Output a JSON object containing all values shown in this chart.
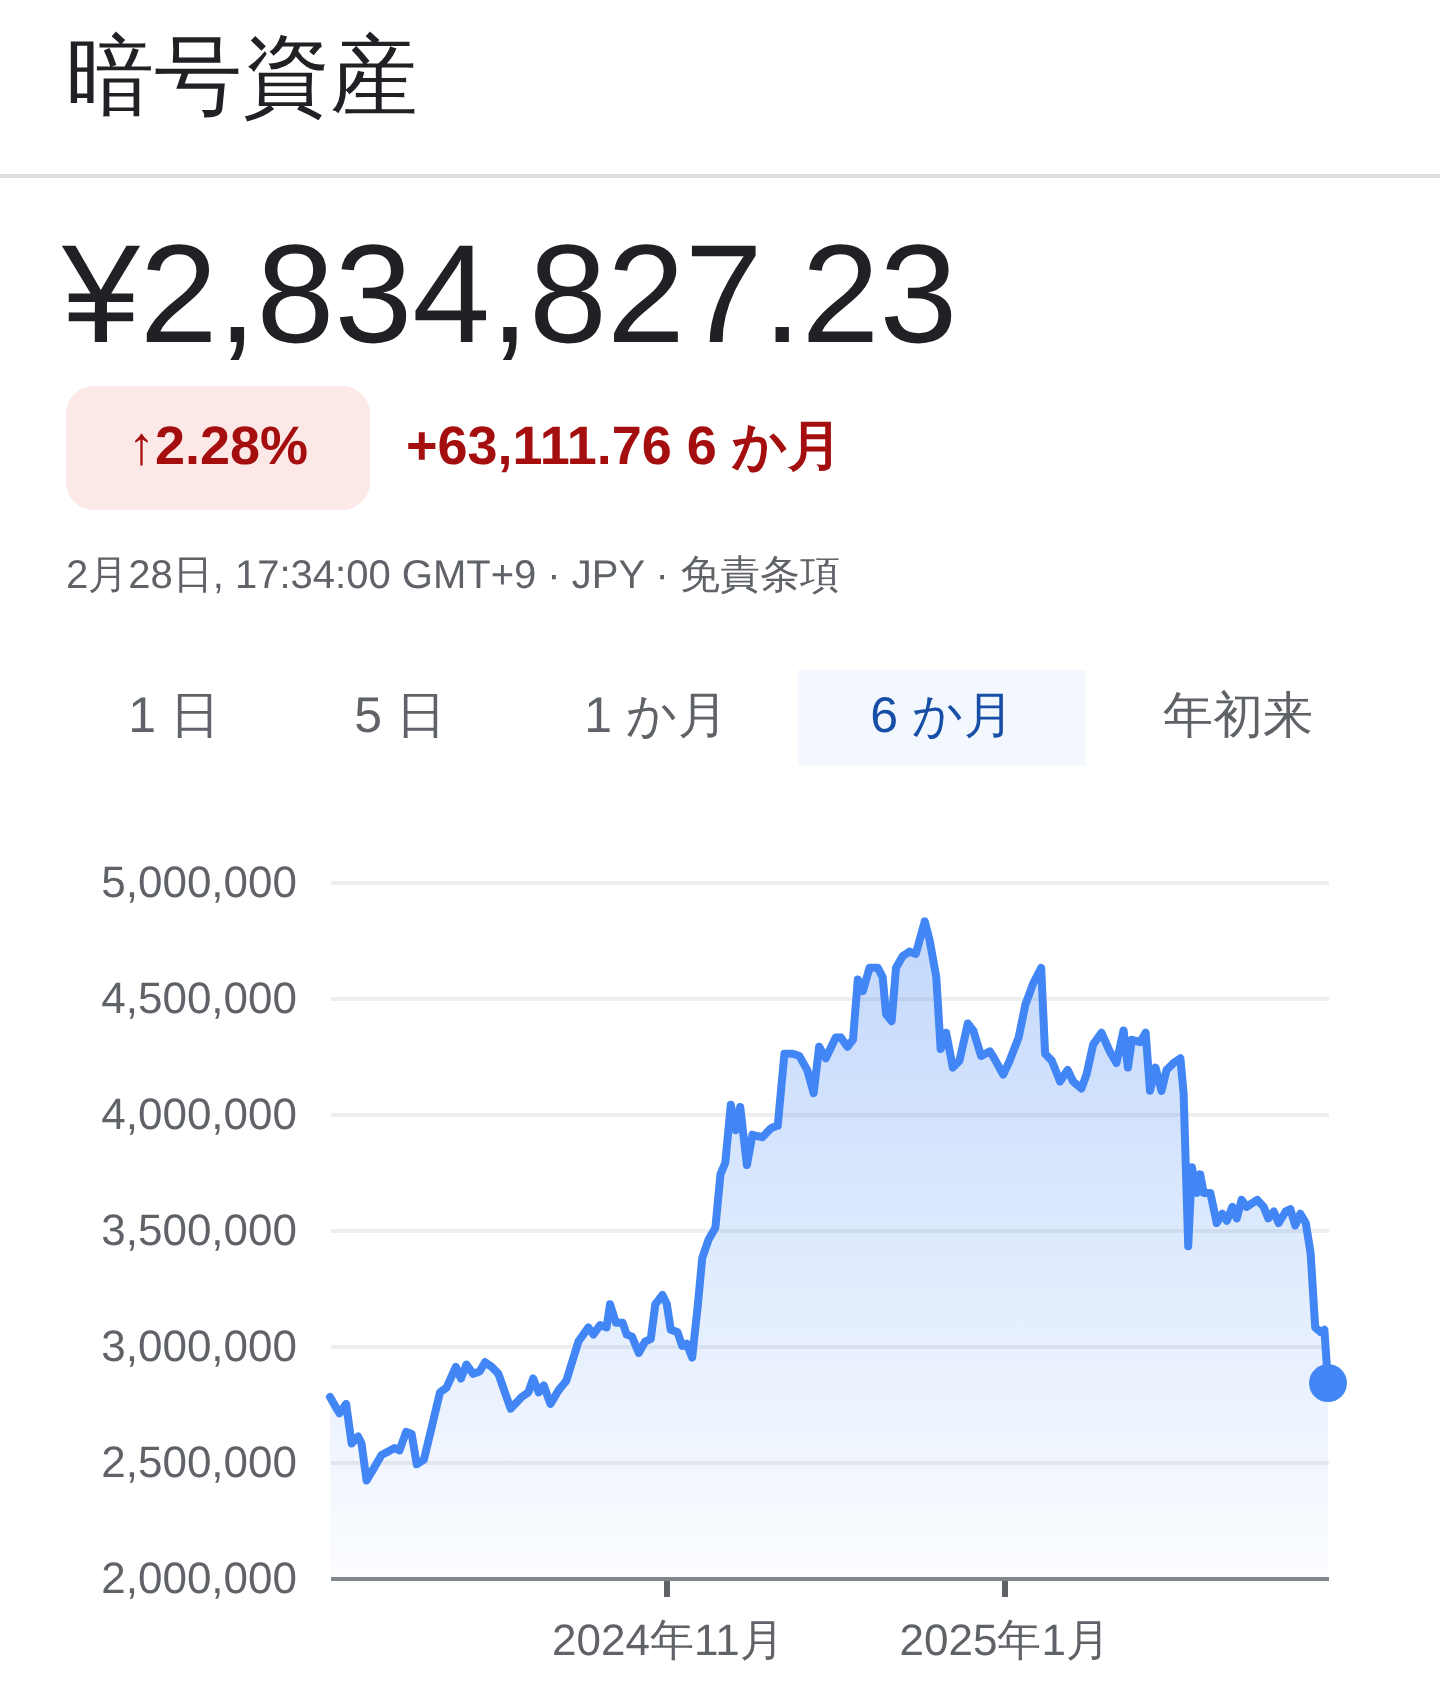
{
  "chart_data": {
    "type": "area",
    "title": "暗号資産",
    "annotations": [
      "¥2,834,827.23",
      "↑2.28%",
      "+63,111.76 6 か月",
      "2月28日, 17:34:00 GMT+9 · JPY · 免責条項",
      "1 日",
      "5 日",
      "1 か月",
      "6 か月",
      "年初来"
    ],
    "series": [
      {
        "color": "#4285f4",
        "x": [
          "2024-09-01T00:00",
          "2024-09-02T17:00",
          "2024-09-03T22:00",
          "2024-09-04T22:00",
          "2024-09-06T02:00",
          "2024-09-06T17:00",
          "2024-09-07T15:00",
          "2024-09-10T08:00",
          "2024-09-12T17:00",
          "2024-09-13T14:00",
          "2024-09-14T19:00",
          "2024-09-15T19:00",
          "2024-09-16T17:00",
          "2024-09-18T00:00",
          "2024-09-19T10:00",
          "2024-09-20T22:00",
          "2024-09-22T02:00",
          "2024-09-23T19:00",
          "2024-09-24T17:00",
          "2024-09-25T17:00",
          "2024-09-26T22:00",
          "2024-09-28T02:00",
          "2024-09-29T02:00",
          "2024-09-30T07:00",
          "2024-10-01T12:00",
          "2024-10-03T17:00",
          "2024-10-05T17:00",
          "2024-10-06T22:00",
          "2024-10-07T19:00",
          "2024-10-08T19:00",
          "2024-10-09T17:00",
          "2024-10-10T22:00",
          "2024-10-12T10:00",
          "2024-10-13T19:00",
          "2024-10-16T00:00",
          "2024-10-17T19:00",
          "2024-10-18T17:00",
          "2024-10-19T22:00",
          "2024-10-21T02:00",
          "2024-10-21T17:00",
          "2024-10-22T19:00",
          "2024-10-24T00:00",
          "2024-10-24T17:00",
          "2024-10-25T17:00",
          "2024-10-26T22:00",
          "2024-10-28T02:00",
          "2024-10-29T02:00",
          "2024-10-29T22:00",
          "2024-10-31T05:00",
          "2024-11-01T00:00",
          "2024-11-01T17:00",
          "2024-11-02T22:00",
          "2024-11-03T19:00",
          "2024-11-04T14:00",
          "2024-11-05T14:00",
          "2024-11-06T14:00",
          "2024-11-07T10:00",
          "2024-11-08T14:00",
          "2024-11-09T19:00",
          "2024-11-10T17:00",
          "2024-11-11T14:00",
          "2024-11-12T14:00",
          "2024-11-13T12:00",
          "2024-11-14T07:00",
          "2024-11-15T12:00",
          "2024-11-16T12:00",
          "2024-11-18T07:00",
          "2024-11-19T22:00",
          "2024-11-21T02:00",
          "2024-11-22T07:00",
          "2024-11-23T19:00",
          "2024-11-25T00:00",
          "2024-11-26T10:00",
          "2024-11-27T14:00",
          "2024-11-28T14:00",
          "2024-11-29T19:00",
          "2024-12-01T14:00",
          "2024-12-02T12:00",
          "2024-12-03T17:00",
          "2024-12-04T17:00",
          "2024-12-05T14:00",
          "2024-12-06T12:00",
          "2024-12-07T17:00",
          "2024-12-09T05:00",
          "2024-12-10T02:00",
          "2024-12-10T17:00",
          "2024-12-11T17:00",
          "2024-12-12T12:00",
          "2024-12-13T17:00",
          "2024-12-14T22:00",
          "2024-12-16T02:00",
          "2024-12-17T17:00",
          "2024-12-18T14:00",
          "2024-12-19T19:00",
          "2024-12-20T14:00",
          "2024-12-21T14:00",
          "2024-12-22T19:00",
          "2024-12-24T00:00",
          "2024-12-25T12:00",
          "2024-12-26T12:00",
          "2024-12-27T22:00",
          "2024-12-29T12:00",
          "2024-12-30T07:00",
          "2024-12-31T22:00",
          "2025-01-02T02:00",
          "2025-01-03T17:00",
          "2025-01-04T22:00",
          "2025-01-06T07:00",
          "2025-01-07T19:00",
          "2025-01-08T12:00",
          "2025-01-09T17:00",
          "2025-01-11T05:00",
          "2025-01-12T14:00",
          "2025-01-13T14:00",
          "2025-01-15T02:00",
          "2025-01-16T00:00",
          "2025-01-17T05:00",
          "2025-01-18T17:00",
          "2025-01-20T05:00",
          "2025-01-21T10:00",
          "2025-01-22T17:00",
          "2025-01-23T12:00",
          "2025-01-24T05:00",
          "2025-01-25T17:00",
          "2025-01-26T17:00",
          "2025-01-27T12:00",
          "2025-01-28T12:00",
          "2025-01-29T14:00",
          "2025-01-30T12:00",
          "2025-01-31T19:00",
          "2025-02-02T00:00",
          "2025-02-02T14:00",
          "2025-02-03T10:00",
          "2025-02-04T02:00",
          "2025-02-05T00:00",
          "2025-02-05T14:00",
          "2025-02-06T05:00",
          "2025-02-07T10:00",
          "2025-02-08T14:00",
          "2025-02-09T14:00",
          "2025-02-10T10:00",
          "2025-02-11T10:00",
          "2025-02-12T05:00",
          "2025-02-13T02:00",
          "2025-02-14T00:00",
          "2025-02-15T22:00",
          "2025-02-17T02:00",
          "2025-02-17T22:00",
          "2025-02-18T22:00",
          "2025-02-19T19:00",
          "2025-02-21T02:00",
          "2025-02-21T22:00",
          "2025-02-22T19:00",
          "2025-02-23T17:00",
          "2025-02-24T17:00",
          "2025-02-25T14:00",
          "2025-02-26T10:00",
          "2025-02-27T10:00",
          "2025-02-28T02:00",
          "2025-02-28T17:34"
        ],
        "values": [
          2780000,
          2710000,
          2750000,
          2580000,
          2610000,
          2580000,
          2420000,
          2530000,
          2560000,
          2550000,
          2630000,
          2620000,
          2490000,
          2510000,
          2650000,
          2800000,
          2820000,
          2910000,
          2860000,
          2920000,
          2880000,
          2890000,
          2930000,
          2910000,
          2880000,
          2730000,
          2780000,
          2800000,
          2860000,
          2800000,
          2830000,
          2750000,
          2810000,
          2850000,
          3020000,
          3080000,
          3050000,
          3090000,
          3080000,
          3180000,
          3100000,
          3100000,
          3050000,
          3040000,
          2970000,
          3020000,
          3030000,
          3180000,
          3220000,
          3180000,
          3070000,
          3060000,
          3000000,
          3010000,
          2950000,
          3170000,
          3380000,
          3460000,
          3510000,
          3740000,
          3790000,
          4040000,
          3930000,
          4030000,
          3780000,
          3910000,
          3900000,
          3940000,
          3950000,
          4260000,
          4260000,
          4250000,
          4190000,
          4090000,
          4290000,
          4240000,
          4330000,
          4330000,
          4290000,
          4320000,
          4580000,
          4530000,
          4630000,
          4630000,
          4590000,
          4430000,
          4400000,
          4630000,
          4680000,
          4700000,
          4690000,
          4830000,
          4750000,
          4590000,
          4280000,
          4350000,
          4200000,
          4230000,
          4390000,
          4360000,
          4250000,
          4270000,
          4240000,
          4170000,
          4230000,
          4330000,
          4470000,
          4560000,
          4630000,
          4260000,
          4230000,
          4140000,
          4190000,
          4140000,
          4110000,
          4170000,
          4300000,
          4350000,
          4270000,
          4220000,
          4360000,
          4200000,
          4320000,
          4310000,
          4350000,
          4100000,
          4200000,
          4100000,
          4190000,
          4220000,
          4240000,
          4090000,
          3430000,
          3770000,
          3660000,
          3740000,
          3660000,
          3660000,
          3530000,
          3570000,
          3540000,
          3600000,
          3550000,
          3630000,
          3600000,
          3630000,
          3600000,
          3550000,
          3580000,
          3530000,
          3580000,
          3590000,
          3520000,
          3570000,
          3530000,
          3400000,
          3080000,
          3060000,
          3070000,
          2840000
        ]
      },
      {
        "type": "scatter",
        "color": "#4285f4",
        "marker": "circle",
        "x": [
          "2025-02-28T17:34"
        ],
        "values": [
          2840000
        ]
      }
    ],
    "xlim": [
      "2024-09-01T00:00",
      "2025-02-28T17:34"
    ],
    "xticks": [
      {
        "value": "2024-11-01",
        "label": "2024年11月"
      },
      {
        "value": "2025-01-01",
        "label": "2025年1月"
      }
    ],
    "ylim": [
      2000000,
      5000000
    ],
    "yticks": [
      {
        "value": 2000000,
        "label": "2,000,000"
      },
      {
        "value": 2500000,
        "label": "2,500,000"
      },
      {
        "value": 3000000,
        "label": "3,000,000"
      },
      {
        "value": 3500000,
        "label": "3,500,000"
      },
      {
        "value": 4000000,
        "label": "4,000,000"
      },
      {
        "value": 4500000,
        "label": "4,500,000"
      },
      {
        "value": 5000000,
        "label": "5,000,000"
      }
    ],
    "grid": "y"
  }
}
